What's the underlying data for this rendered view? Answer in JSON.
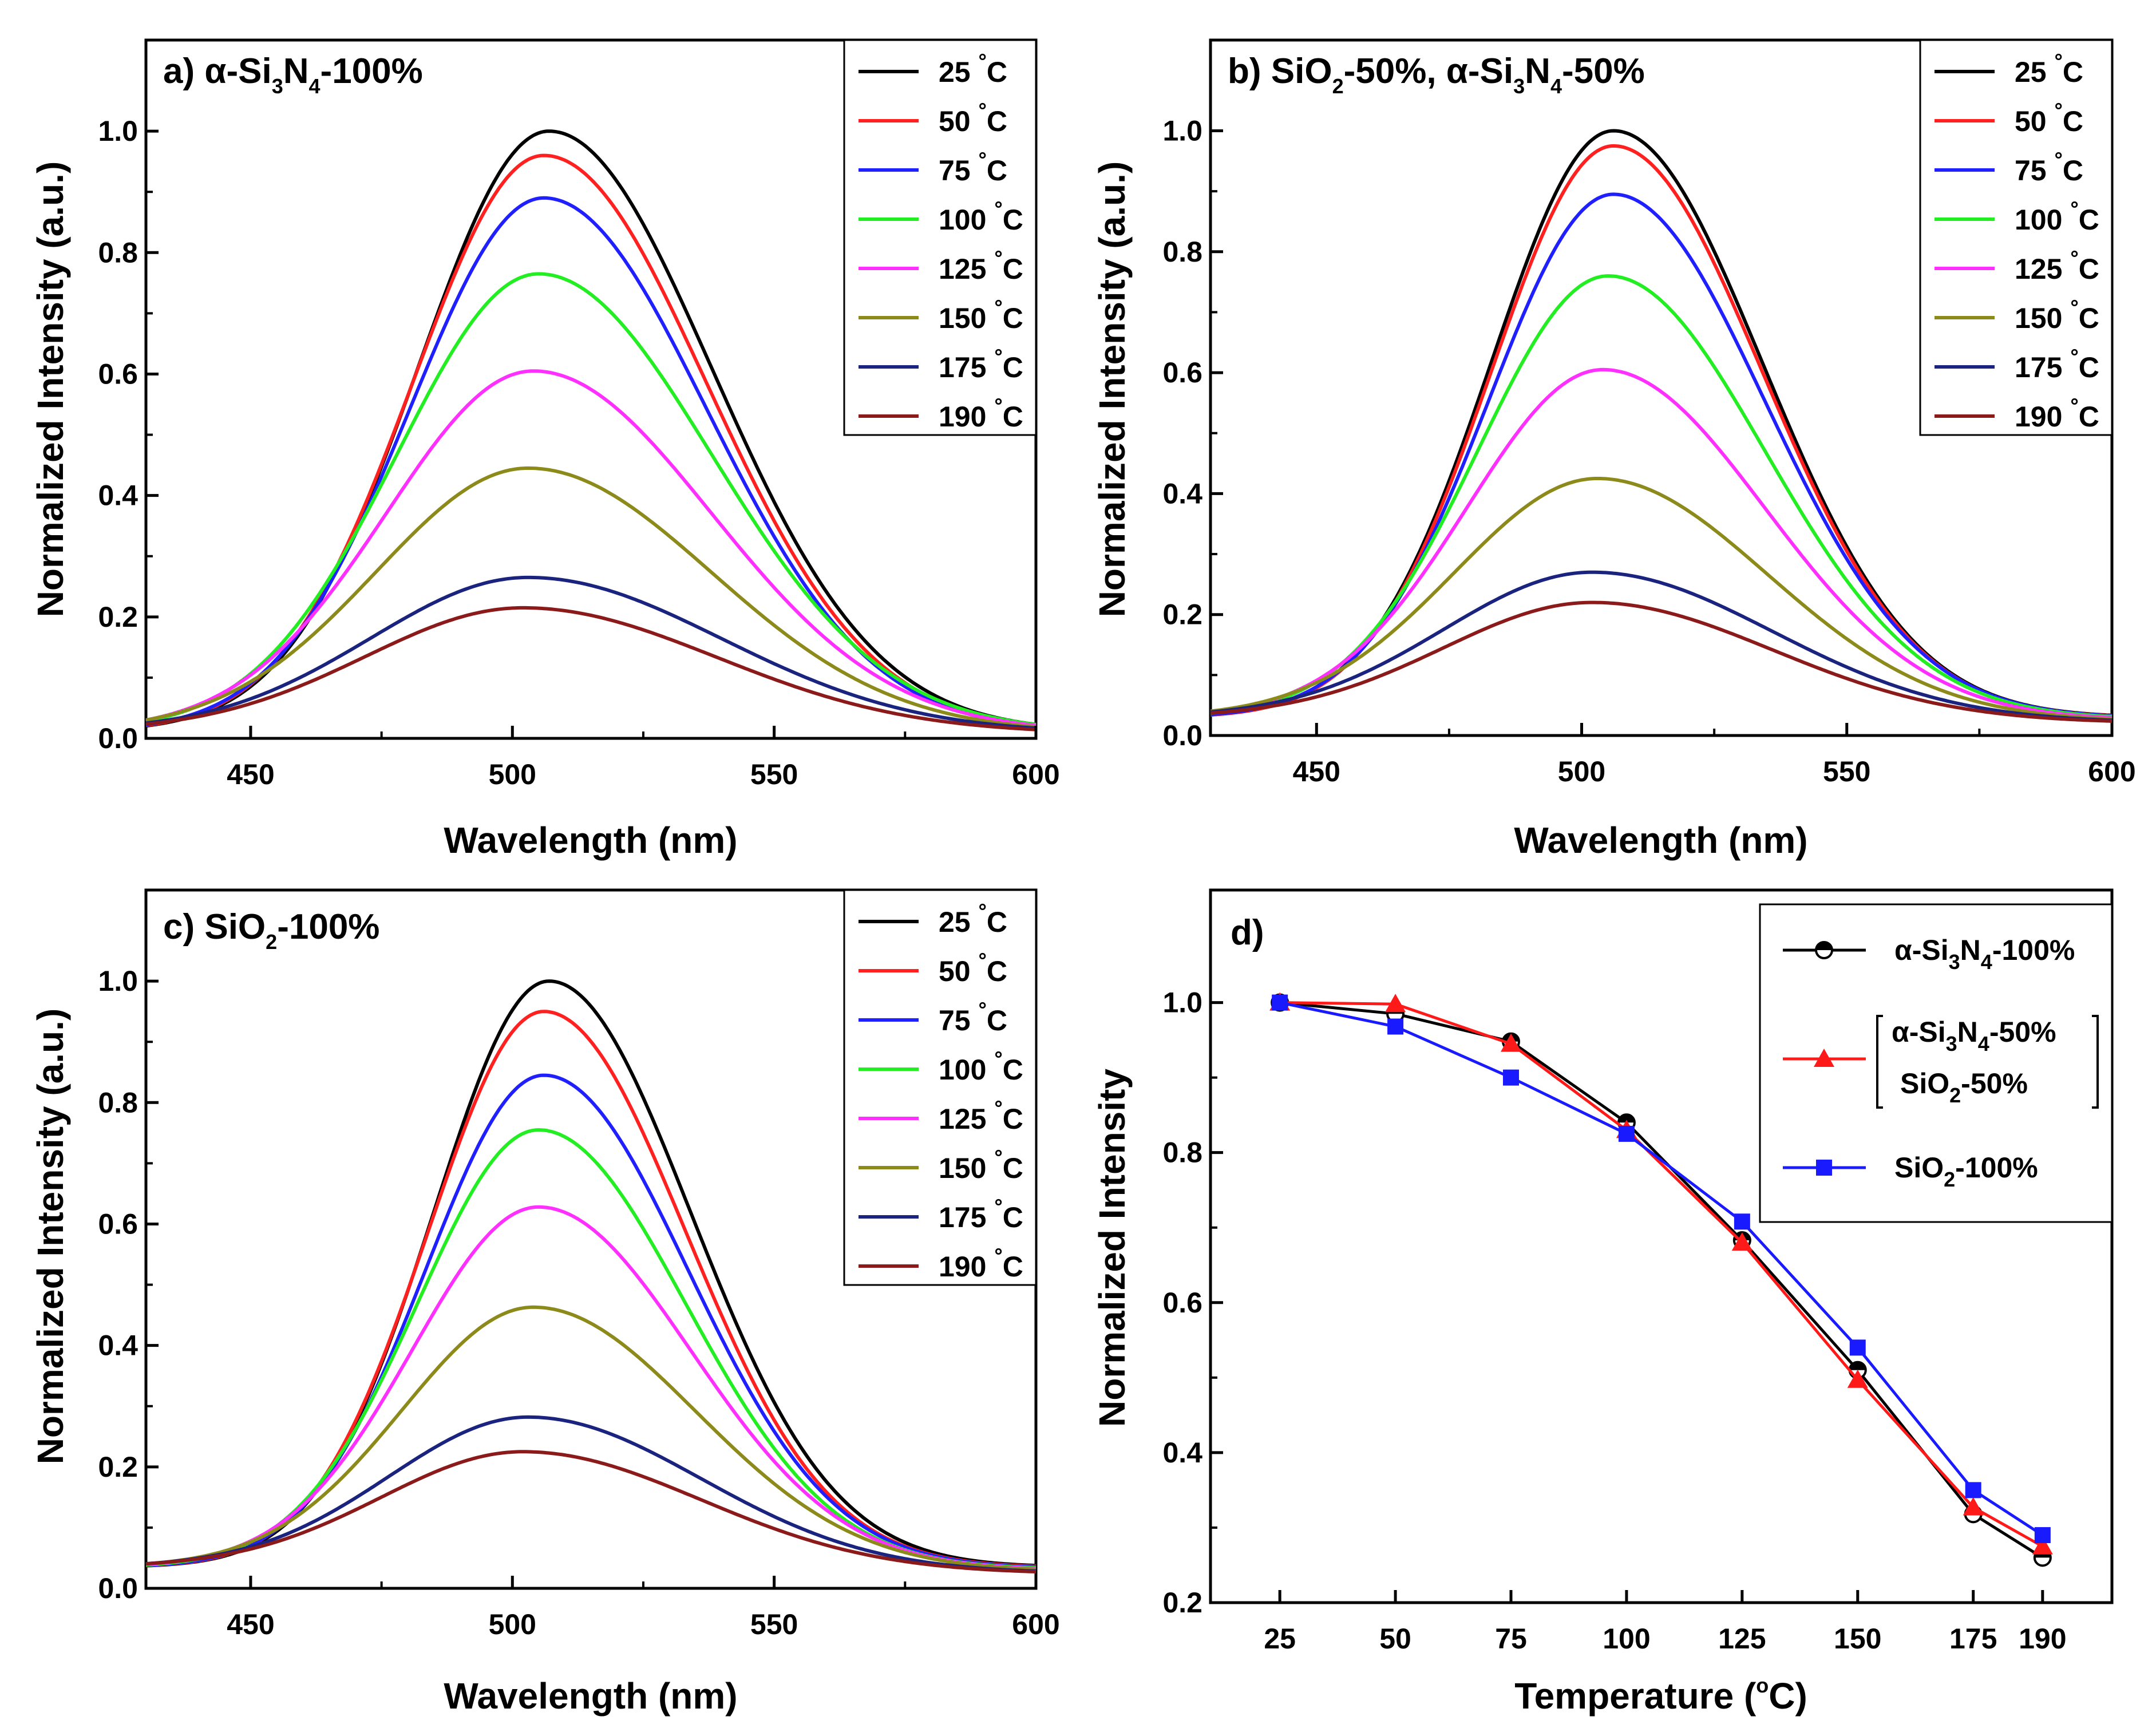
{
  "chart_data": [
    {
      "type": "line",
      "panel": "a",
      "title_parts": {
        "prefix": "a) α-Si",
        "sub1": "3",
        "mid": "N",
        "sub2": "4",
        "suffix": "-100%"
      },
      "xlabel": "Wavelength (nm)",
      "ylabel": "Normalized Intensity (a.u.)",
      "xlim": [
        430,
        600
      ],
      "ylim": [
        0,
        1.15
      ],
      "xticks": [
        450,
        500,
        550,
        600
      ],
      "yticks": [
        0.0,
        0.2,
        0.4,
        0.6,
        0.8,
        1.0
      ],
      "ytick_labels": [
        "0.0",
        "0.2",
        "0.4",
        "0.6",
        "0.8",
        "1.0"
      ],
      "baseline": 0.012,
      "legend_position": "top-right",
      "series": [
        {
          "name": "25",
          "unit": "°C",
          "color": "#000000",
          "peak": 1.0,
          "center": 507,
          "sigma_left": 25,
          "sigma_right": 31
        },
        {
          "name": "50",
          "unit": "°C",
          "color": "#ff2020",
          "peak": 0.96,
          "center": 506,
          "sigma_left": 25,
          "sigma_right": 31
        },
        {
          "name": "75",
          "unit": "°C",
          "color": "#2020ff",
          "peak": 0.89,
          "center": 506,
          "sigma_left": 25.5,
          "sigma_right": 31
        },
        {
          "name": "100",
          "unit": "°C",
          "color": "#22ee22",
          "peak": 0.765,
          "center": 505,
          "sigma_left": 27,
          "sigma_right": 33
        },
        {
          "name": "125",
          "unit": "°C",
          "color": "#ff30ff",
          "peak": 0.605,
          "center": 504,
          "sigma_left": 28,
          "sigma_right": 34
        },
        {
          "name": "150",
          "unit": "°C",
          "color": "#8c8a1a",
          "peak": 0.445,
          "center": 503,
          "sigma_left": 29,
          "sigma_right": 35
        },
        {
          "name": "175",
          "unit": "°C",
          "color": "#1a237e",
          "peak": 0.265,
          "center": 503,
          "sigma_left": 30,
          "sigma_right": 37
        },
        {
          "name": "190",
          "unit": "°C",
          "color": "#8b1a1a",
          "peak": 0.215,
          "center": 502,
          "sigma_left": 30,
          "sigma_right": 37
        }
      ]
    },
    {
      "type": "line",
      "panel": "b",
      "title_parts": {
        "prefix": "b) SiO",
        "sub1": "2",
        "mid": "-50%, α-Si",
        "sub2": "3",
        "mid2": "N",
        "sub3": "4",
        "suffix": "-50%"
      },
      "xlabel": "Wavelength (nm)",
      "ylabel": "Normalized Intensity (a.u.)",
      "xlim": [
        430,
        600
      ],
      "ylim": [
        0,
        1.15
      ],
      "xticks": [
        450,
        500,
        550,
        600
      ],
      "yticks": [
        0.0,
        0.2,
        0.4,
        0.6,
        0.8,
        1.0
      ],
      "ytick_labels": [
        "0.0",
        "0.2",
        "0.4",
        "0.6",
        "0.8",
        "1.0"
      ],
      "baseline": 0.03,
      "legend_position": "top-right",
      "series": [
        {
          "name": "25",
          "unit": "°C",
          "color": "#000000",
          "peak": 1.0,
          "center": 506,
          "sigma_left": 23,
          "sigma_right": 28
        },
        {
          "name": "50",
          "unit": "°C",
          "color": "#ff2020",
          "peak": 0.975,
          "center": 506,
          "sigma_left": 23,
          "sigma_right": 28
        },
        {
          "name": "75",
          "unit": "°C",
          "color": "#2020ff",
          "peak": 0.895,
          "center": 506,
          "sigma_left": 23.5,
          "sigma_right": 28.5
        },
        {
          "name": "100",
          "unit": "°C",
          "color": "#22ee22",
          "peak": 0.76,
          "center": 505,
          "sigma_left": 24.5,
          "sigma_right": 29.5
        },
        {
          "name": "125",
          "unit": "°C",
          "color": "#ff30ff",
          "peak": 0.605,
          "center": 504,
          "sigma_left": 25.5,
          "sigma_right": 30.5
        },
        {
          "name": "150",
          "unit": "°C",
          "color": "#8c8a1a",
          "peak": 0.425,
          "center": 503,
          "sigma_left": 27,
          "sigma_right": 32
        },
        {
          "name": "175",
          "unit": "°C",
          "color": "#1a237e",
          "peak": 0.27,
          "center": 502,
          "sigma_left": 28,
          "sigma_right": 34
        },
        {
          "name": "190",
          "unit": "°C",
          "color": "#8b1a1a",
          "peak": 0.22,
          "center": 502,
          "sigma_left": 28,
          "sigma_right": 34
        }
      ]
    },
    {
      "type": "line",
      "panel": "c",
      "title_parts": {
        "prefix": "c) SiO",
        "sub1": "2",
        "suffix": "-100%"
      },
      "xlabel": "Wavelength (nm)",
      "ylabel": "Normalized Intensity (a.u.)",
      "xlim": [
        430,
        600
      ],
      "ylim": [
        0,
        1.15
      ],
      "xticks": [
        450,
        500,
        550,
        600
      ],
      "yticks": [
        0.0,
        0.2,
        0.4,
        0.6,
        0.8,
        1.0
      ],
      "ytick_labels": [
        "0.0",
        "0.2",
        "0.4",
        "0.6",
        "0.8",
        "1.0"
      ],
      "baseline": 0.035,
      "legend_position": "top-right",
      "series": [
        {
          "name": "25",
          "unit": "°C",
          "color": "#000000",
          "peak": 1.0,
          "center": 507,
          "sigma_left": 22,
          "sigma_right": 27
        },
        {
          "name": "50",
          "unit": "°C",
          "color": "#ff2020",
          "peak": 0.95,
          "center": 506,
          "sigma_left": 22,
          "sigma_right": 27
        },
        {
          "name": "75",
          "unit": "°C",
          "color": "#2020ff",
          "peak": 0.845,
          "center": 506,
          "sigma_left": 22.5,
          "sigma_right": 27.5
        },
        {
          "name": "100",
          "unit": "°C",
          "color": "#22ee22",
          "peak": 0.755,
          "center": 505,
          "sigma_left": 23,
          "sigma_right": 28
        },
        {
          "name": "125",
          "unit": "°C",
          "color": "#ff30ff",
          "peak": 0.628,
          "center": 505,
          "sigma_left": 24,
          "sigma_right": 29
        },
        {
          "name": "150",
          "unit": "°C",
          "color": "#8c8a1a",
          "peak": 0.463,
          "center": 504,
          "sigma_left": 25,
          "sigma_right": 31
        },
        {
          "name": "175",
          "unit": "°C",
          "color": "#1a237e",
          "peak": 0.282,
          "center": 503,
          "sigma_left": 26.5,
          "sigma_right": 33
        },
        {
          "name": "190",
          "unit": "°C",
          "color": "#8b1a1a",
          "peak": 0.225,
          "center": 502,
          "sigma_left": 27,
          "sigma_right": 34
        }
      ]
    },
    {
      "type": "line",
      "panel": "d",
      "title": "d)",
      "xlabel_parts": {
        "prefix": "Temperature (",
        "sup": "o",
        "suffix": "C)"
      },
      "ylabel": "Normalized Intensity",
      "xlim": [
        10,
        205
      ],
      "ylim": [
        0.2,
        1.15
      ],
      "xticks": [
        25,
        50,
        75,
        100,
        125,
        150,
        175,
        190
      ],
      "yticks": [
        0.2,
        0.4,
        0.6,
        0.8,
        1.0
      ],
      "ytick_labels": [
        "0.2",
        "0.4",
        "0.6",
        "0.8",
        "1.0"
      ],
      "legend_position": "top-right",
      "x": [
        25,
        50,
        75,
        100,
        125,
        150,
        175,
        190
      ],
      "series": [
        {
          "name_parts": {
            "prefix": "α-Si",
            "sub1": "3",
            "mid": "N",
            "sub2": "4",
            "suffix": "-100%"
          },
          "color": "#000000",
          "marker": "half-filled-circle",
          "values": [
            1.0,
            0.985,
            0.948,
            0.84,
            0.683,
            0.51,
            0.318,
            0.26
          ]
        },
        {
          "name_parts": {
            "line1_prefix": "α-Si",
            "line1_sub1": "3",
            "line1_mid": "N",
            "line1_sub2": "4",
            "line1_suffix": "-50%",
            "line2_prefix": "SiO",
            "line2_sub": "2",
            "line2_suffix": "-50%"
          },
          "color": "#ff1a1a",
          "marker": "triangle",
          "values": [
            1.0,
            0.998,
            0.945,
            0.83,
            0.68,
            0.497,
            0.327,
            0.275
          ]
        },
        {
          "name_parts": {
            "prefix": "SiO",
            "sub1": "2",
            "suffix": "-100%"
          },
          "color": "#1a1aff",
          "marker": "square",
          "values": [
            1.0,
            0.968,
            0.9,
            0.825,
            0.708,
            0.54,
            0.35,
            0.29
          ]
        }
      ]
    }
  ]
}
